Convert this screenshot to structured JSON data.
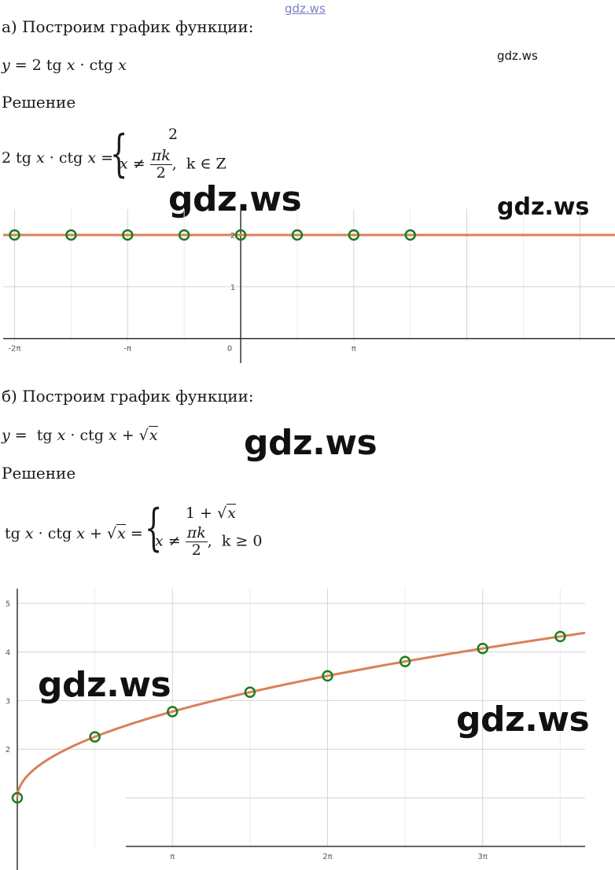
{
  "watermarks": {
    "top": "gdz.ws",
    "small_right": "gdz.ws",
    "big_a1": "gdz.ws",
    "mid_a2": "gdz.ws",
    "big_b1": "gdz.ws",
    "big_b2": "gdz.ws",
    "big_b3": "gdz.ws"
  },
  "part_a": {
    "heading": "а) Построим график функции:",
    "solution_label": "Решение",
    "formula": {
      "lhs": "y",
      "eq": "=",
      "rhs_coef": "2",
      "tg": "tg",
      "x": "x",
      "dot": "·",
      "ctg": "ctg"
    },
    "system": {
      "top_value": "2",
      "cond_var": "x",
      "cond_neq": "≠",
      "num": "πk",
      "den": "2",
      "k_cond": "k ∈ Z"
    }
  },
  "part_b": {
    "heading": "б) Построим график функции:",
    "solution_label": "Решение",
    "formula": {
      "lhs": "y",
      "eq": "=",
      "tg": "tg",
      "x": "x",
      "dot": "·",
      "ctg": "ctg",
      "plus": "+",
      "sqrt_arg": "x"
    },
    "system": {
      "top_one": "1",
      "top_plus": "+",
      "top_sqrt_arg": "x",
      "cond_var": "x",
      "cond_neq": "≠",
      "num": "πk",
      "den": "2",
      "k_cond": "k ≥ 0"
    }
  },
  "chart_data": [
    {
      "type": "scatter",
      "x_tick_labels": [
        "-2π",
        "-π",
        "0",
        "π"
      ],
      "y_tick_labels": [
        "1",
        "2"
      ],
      "xlim": [
        -6.6,
        10.4
      ],
      "ylim": [
        -0.05,
        2.5
      ],
      "line": {
        "y": 2,
        "color": "#d9805a"
      },
      "excluded_points": {
        "x": [
          -6.283,
          -4.712,
          -3.142,
          -1.571,
          0,
          1.571,
          3.142,
          4.712
        ],
        "y": [
          2,
          2,
          2,
          2,
          2,
          2,
          2,
          2
        ],
        "color": "#1e7d1e"
      },
      "grid": true
    },
    {
      "type": "scatter",
      "x_tick_labels": [
        "π",
        "2π",
        "3π"
      ],
      "y_tick_labels": [
        "2",
        "3",
        "4",
        "5"
      ],
      "xlim": [
        0,
        11.5
      ],
      "ylim": [
        0,
        5.3
      ],
      "curve": {
        "function": "1+sqrt(x)",
        "color": "#d9805a",
        "x_max": 11.5
      },
      "excluded_points": {
        "x": [
          0,
          1.571,
          3.142,
          4.712,
          6.283,
          7.854,
          9.425,
          10.996
        ],
        "y": [
          1,
          2.253,
          2.772,
          3.171,
          3.507,
          3.802,
          4.07,
          4.316
        ],
        "color": "#1e7d1e"
      },
      "grid": true
    }
  ]
}
